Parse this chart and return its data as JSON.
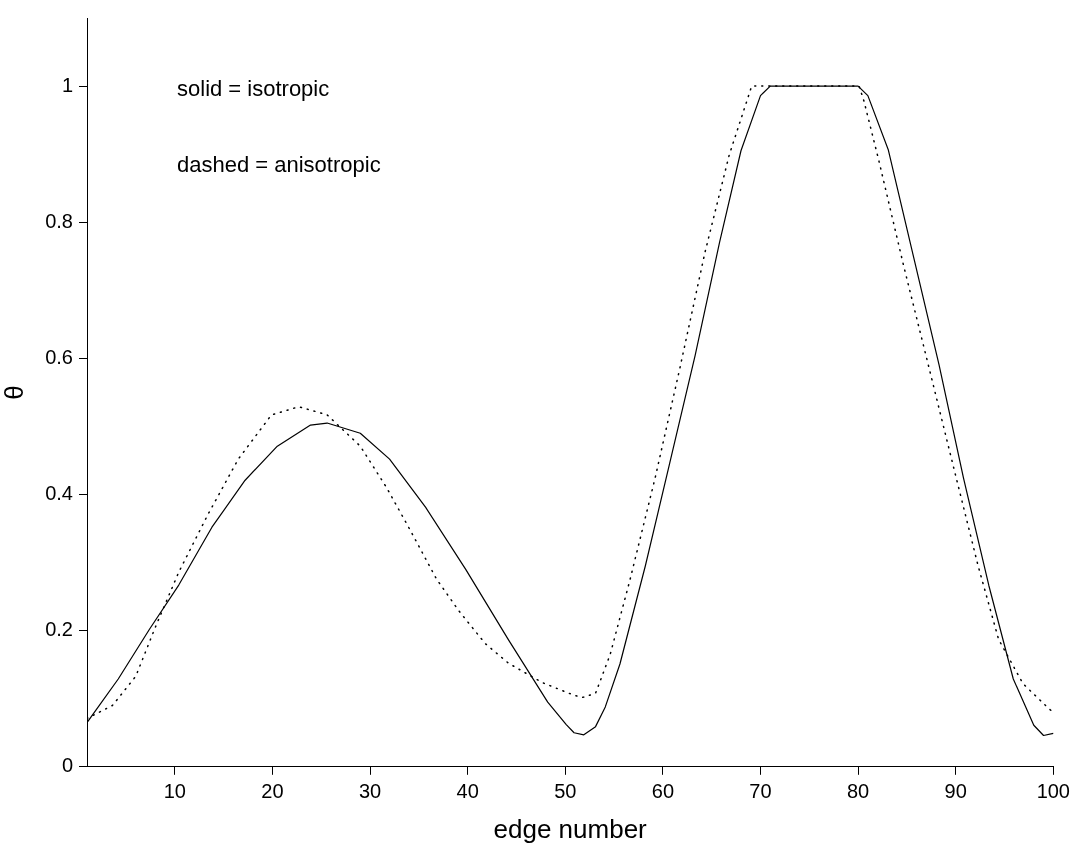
{
  "chart_data": {
    "type": "line",
    "xlabel": "edge number",
    "ylabel": "θ",
    "xlim": [
      1,
      100
    ],
    "ylim": [
      0,
      1.1
    ],
    "xticks": [
      10,
      20,
      30,
      40,
      50,
      60,
      70,
      80,
      90,
      100
    ],
    "yticks": [
      0,
      0.2,
      0.4,
      0.6,
      0.8,
      1
    ],
    "annotations": [
      "solid = isotropic",
      "dashed = anisotropic"
    ],
    "series": [
      {
        "color": "#000000",
        "line_style": "solid",
        "x": [
          1,
          4.2,
          7.4,
          10.4,
          13.8,
          17.2,
          20.5,
          23.9,
          25.6,
          29,
          32,
          35.7,
          39.8,
          44.2,
          48.2,
          50.1,
          50.9,
          51.9,
          53.1,
          54.1,
          55.6,
          58.2,
          60.7,
          63.3,
          65.8,
          68,
          70,
          71,
          80,
          81,
          83.1,
          85.7,
          88.3,
          90.8,
          93.4,
          95.9,
          98,
          99,
          100
        ],
        "values": [
          0.065,
          0.129,
          0.202,
          0.267,
          0.352,
          0.421,
          0.471,
          0.502,
          0.505,
          0.49,
          0.452,
          0.381,
          0.29,
          0.186,
          0.095,
          0.062,
          0.05,
          0.047,
          0.059,
          0.088,
          0.151,
          0.295,
          0.446,
          0.604,
          0.77,
          0.905,
          0.986,
          1,
          1,
          0.986,
          0.906,
          0.748,
          0.59,
          0.424,
          0.266,
          0.129,
          0.061,
          0.046,
          0.049
        ]
      },
      {
        "color": "#000000",
        "line_style": "dotted",
        "x": [
          1,
          3.6,
          6,
          8,
          10.4,
          13.4,
          16.5,
          19.9,
          22.7,
          25.6,
          29,
          31.7,
          34.1,
          36.8,
          39.1,
          41.8,
          44.2,
          47.6,
          50.9,
          51.8,
          53.1,
          54.6,
          56.6,
          59.2,
          61.7,
          64.3,
          66.8,
          69.1,
          80.1,
          80.6,
          82.1,
          84.7,
          87.2,
          89.8,
          92.3,
          94.4,
          96.9,
          99.5,
          100
        ],
        "values": [
          0.071,
          0.09,
          0.133,
          0.205,
          0.286,
          0.371,
          0.452,
          0.517,
          0.529,
          0.517,
          0.471,
          0.41,
          0.348,
          0.276,
          0.229,
          0.181,
          0.152,
          0.124,
          0.105,
          0.102,
          0.108,
          0.165,
          0.273,
          0.424,
          0.583,
          0.755,
          0.899,
          1,
          1,
          0.978,
          0.892,
          0.734,
          0.59,
          0.439,
          0.295,
          0.187,
          0.122,
          0.086,
          0.08
        ]
      }
    ]
  }
}
